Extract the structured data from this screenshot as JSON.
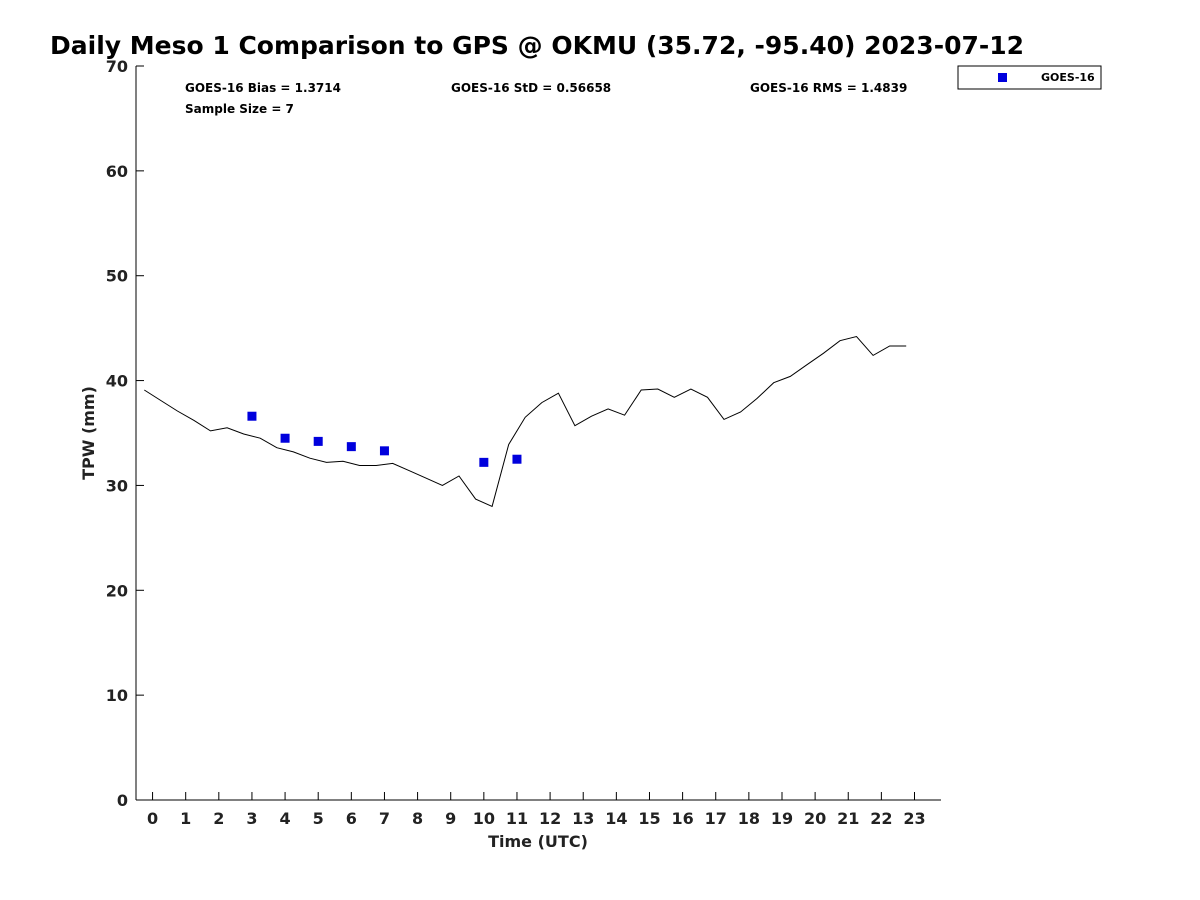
{
  "chart_data": {
    "type": "scatter",
    "title": "Daily Meso 1 Comparison to GPS @ OKMU (35.72, -95.40) 2023-07-12",
    "xlabel": "Time (UTC)",
    "ylabel": "TPW (mm)",
    "xlim": [
      -0.5,
      23.8
    ],
    "ylim": [
      0,
      70
    ],
    "x_ticks": [
      0,
      1,
      2,
      3,
      4,
      5,
      6,
      7,
      8,
      9,
      10,
      11,
      12,
      13,
      14,
      15,
      16,
      17,
      18,
      19,
      20,
      21,
      22,
      23
    ],
    "y_ticks": [
      0,
      10,
      20,
      30,
      40,
      50,
      60,
      70
    ],
    "grid": false,
    "legend_position": "top-right outside",
    "stats": {
      "bias": "GOES-16 Bias = 1.3714",
      "std": "GOES-16 StD = 0.56658",
      "rms": "GOES-16 RMS = 1.4839",
      "sample": "Sample Size = 7"
    },
    "series": [
      {
        "name": "GOES-16",
        "kind": "scatter",
        "marker": "square",
        "color": "#0000dd",
        "x": [
          3,
          4,
          5,
          6,
          7,
          10,
          11
        ],
        "y": [
          36.6,
          34.5,
          34.2,
          33.7,
          33.3,
          32.2,
          32.5
        ]
      },
      {
        "kind": "line",
        "color": "#000000",
        "x": [
          -0.25,
          0.25,
          0.75,
          1.25,
          1.75,
          2.25,
          2.75,
          3.25,
          3.75,
          4.25,
          4.75,
          5.25,
          5.75,
          6.25,
          6.75,
          7.25,
          7.75,
          8.25,
          8.75,
          9.25,
          9.75,
          10.25,
          10.75,
          11.25,
          11.75,
          12.25,
          12.75,
          13.25,
          13.75,
          14.25,
          14.75,
          15.25,
          15.75,
          16.25,
          16.75,
          17.25,
          17.75,
          18.25,
          18.75,
          19.25,
          19.75,
          20.25,
          20.75,
          21.25,
          21.75,
          22.25,
          22.75
        ],
        "y": [
          39.1,
          38.1,
          37.1,
          36.2,
          35.2,
          35.5,
          34.9,
          34.5,
          33.6,
          33.2,
          32.6,
          32.2,
          32.3,
          31.9,
          31.9,
          32.1,
          31.4,
          30.7,
          30.0,
          30.9,
          28.7,
          28.0,
          33.9,
          36.5,
          37.9,
          38.8,
          35.7,
          36.6,
          37.3,
          36.7,
          39.1,
          39.2,
          38.4,
          39.2,
          38.4,
          36.3,
          37.0,
          38.3,
          39.8,
          40.4,
          41.5,
          42.6,
          43.8,
          44.2,
          42.4,
          43.3,
          43.3
        ]
      }
    ]
  }
}
